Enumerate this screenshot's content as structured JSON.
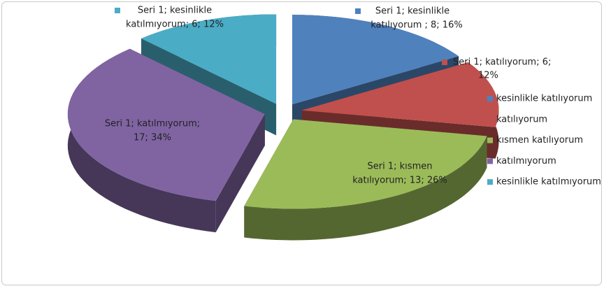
{
  "chart_data": {
    "type": "pie",
    "categories": [
      "kesinlikle katılıyorum",
      "katılıyorum",
      "kısmen katılıyorum",
      "katılmıyorum",
      "kesinlikle katılmıyorum"
    ],
    "values": [
      8,
      6,
      13,
      17,
      6
    ],
    "value_labels": [
      [
        "Seri 1; kesinlikle",
        "katılıyorum ; 8; 16%"
      ],
      [
        "Seri 1; katılıyorum; 6;",
        "12%"
      ],
      [
        "Seri 1; kısmen",
        "katılıyorum; 13; 26%"
      ],
      [
        "Seri 1; katılmıyorum;",
        "17; 34%"
      ],
      [
        "Seri 1; kesinlikle",
        "katılmıyorum; 6; 12%"
      ]
    ],
    "colors": [
      "#4f81bd",
      "#c0504d",
      "#9bbb59",
      "#8064a2",
      "#4bacc6"
    ],
    "legend": "right"
  }
}
